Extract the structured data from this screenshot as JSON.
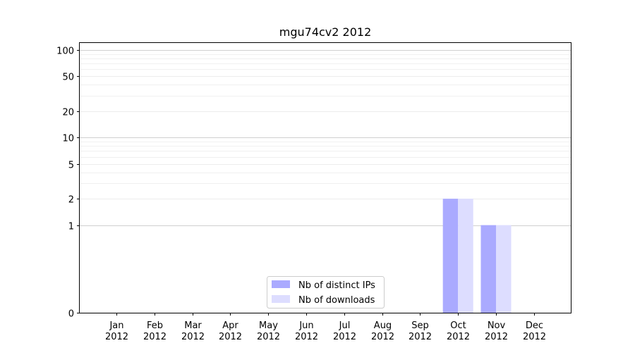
{
  "chart_data": {
    "type": "bar",
    "title": "mgu74cv2 2012",
    "xlabel": "",
    "ylabel": "",
    "y_scale": "symlog",
    "ylim": [
      0,
      120
    ],
    "yticks": [
      0,
      1,
      2,
      5,
      10,
      20,
      50,
      100
    ],
    "ytick_labels": [
      "0",
      "1",
      "2",
      "5",
      "10",
      "20",
      "50",
      "100"
    ],
    "categories": [
      [
        "Jan",
        "2012"
      ],
      [
        "Feb",
        "2012"
      ],
      [
        "Mar",
        "2012"
      ],
      [
        "Apr",
        "2012"
      ],
      [
        "May",
        "2012"
      ],
      [
        "Jun",
        "2012"
      ],
      [
        "Jul",
        "2012"
      ],
      [
        "Aug",
        "2012"
      ],
      [
        "Sep",
        "2012"
      ],
      [
        "Oct",
        "2012"
      ],
      [
        "Nov",
        "2012"
      ],
      [
        "Dec",
        "2012"
      ]
    ],
    "series": [
      {
        "name": "Nb of distinct IPs",
        "color": "#aaaaff",
        "values": [
          0,
          0,
          0,
          0,
          0,
          0,
          0,
          0,
          0,
          2,
          1,
          0
        ]
      },
      {
        "name": "Nb of downloads",
        "color": "#ddddff",
        "values": [
          0,
          0,
          0,
          0,
          0,
          0,
          0,
          0,
          0,
          2,
          1,
          0
        ]
      }
    ],
    "grid": true,
    "legend_position": "bottom-center"
  }
}
